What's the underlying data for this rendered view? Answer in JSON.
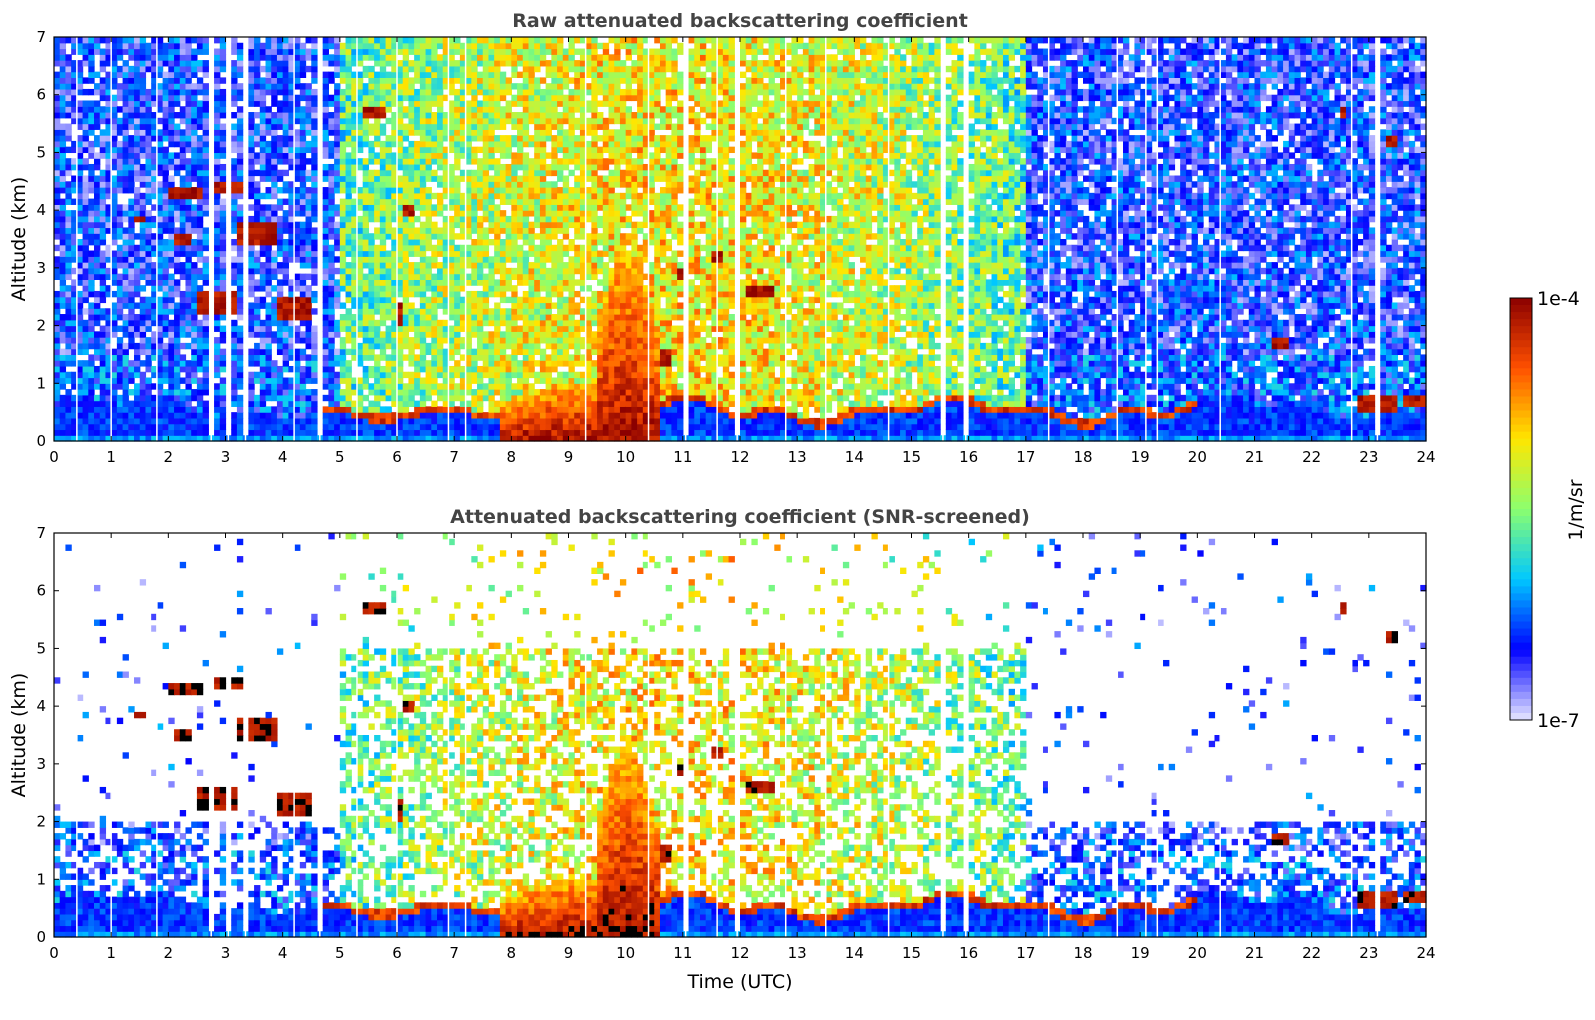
{
  "chart_data": [
    {
      "type": "heatmap",
      "title": "Raw attenuated backscattering coefficient",
      "xlabel": "",
      "ylabel": "Altitude (km)",
      "xlim": [
        0,
        24
      ],
      "ylim": [
        0,
        7
      ],
      "xticks": [
        "0",
        "1",
        "2",
        "3",
        "4",
        "5",
        "6",
        "7",
        "8",
        "9",
        "10",
        "11",
        "12",
        "13",
        "14",
        "15",
        "16",
        "17",
        "18",
        "19",
        "20",
        "21",
        "22",
        "23",
        "24"
      ],
      "yticks": [
        "0",
        "1",
        "2",
        "3",
        "4",
        "5",
        "6",
        "7"
      ],
      "screened": false
    },
    {
      "type": "heatmap",
      "title": "Attenuated backscattering coefficient (SNR-screened)",
      "xlabel": "Time (UTC)",
      "ylabel": "Altitude (km)",
      "xlim": [
        0,
        24
      ],
      "ylim": [
        0,
        7
      ],
      "xticks": [
        "0",
        "1",
        "2",
        "3",
        "4",
        "5",
        "6",
        "7",
        "8",
        "9",
        "10",
        "11",
        "12",
        "13",
        "14",
        "15",
        "16",
        "17",
        "18",
        "19",
        "20",
        "21",
        "22",
        "23",
        "24"
      ],
      "yticks": [
        "0",
        "1",
        "2",
        "3",
        "4",
        "5",
        "6",
        "7"
      ],
      "screened": true
    }
  ],
  "colorbar": {
    "max_label": "1e-4",
    "min_label": "1e-7",
    "unit_label": "1/m/sr",
    "scale": "log",
    "colors": [
      "#e6e6ff",
      "#0000ff",
      "#00c8ff",
      "#8cff6e",
      "#ffe600",
      "#ff5000",
      "#8b0000"
    ]
  },
  "features": {
    "boundary_layer_top_km": 0.6,
    "clouds": [
      {
        "t0": 2.0,
        "t1": 2.6,
        "z": 4.3,
        "h": 0.12
      },
      {
        "t0": 2.8,
        "t1": 3.3,
        "z": 4.4,
        "h": 0.12
      },
      {
        "t0": 3.2,
        "t1": 3.9,
        "z": 3.6,
        "h": 0.25
      },
      {
        "t0": 2.5,
        "t1": 3.2,
        "z": 2.4,
        "h": 0.3
      },
      {
        "t0": 3.9,
        "t1": 4.5,
        "z": 2.3,
        "h": 0.35
      },
      {
        "t0": 1.4,
        "t1": 1.6,
        "z": 3.85,
        "h": 0.1
      },
      {
        "t0": 2.1,
        "t1": 2.4,
        "z": 3.5,
        "h": 0.15
      },
      {
        "t0": 5.4,
        "t1": 5.8,
        "z": 5.7,
        "h": 0.05
      },
      {
        "t0": 6.1,
        "t1": 6.3,
        "z": 4.0,
        "h": 0.12
      },
      {
        "t0": 12.1,
        "t1": 12.6,
        "z": 2.6,
        "h": 0.12
      },
      {
        "t0": 10.5,
        "t1": 10.8,
        "z": 1.45,
        "h": 0.2
      },
      {
        "t0": 21.3,
        "t1": 21.6,
        "z": 1.7,
        "h": 0.12
      },
      {
        "t0": 23.3,
        "t1": 23.5,
        "z": 5.2,
        "h": 0.12
      },
      {
        "t0": 22.5,
        "t1": 22.6,
        "z": 5.75,
        "h": 0.1
      },
      {
        "t0": 22.8,
        "t1": 23.5,
        "z": 0.65,
        "h": 0.12
      },
      {
        "t0": 23.6,
        "t1": 24.0,
        "z": 0.72,
        "h": 0.1
      },
      {
        "t0": 11.5,
        "t1": 11.7,
        "z": 3.2,
        "h": 0.15
      },
      {
        "t0": 10.9,
        "t1": 11.0,
        "z": 2.9,
        "h": 0.15
      },
      {
        "t0": 6.0,
        "t1": 6.1,
        "z": 2.2,
        "h": 0.2
      }
    ],
    "convection": [
      {
        "t0": 7.8,
        "t1": 10.55,
        "top": 1.0
      },
      {
        "t0": 9.5,
        "t1": 10.55,
        "top": 3.3
      }
    ],
    "dropouts_hours": [
      0.4,
      1.0,
      1.8,
      2.75,
      3.05,
      3.35,
      4.2,
      4.65,
      5.3,
      6.0,
      6.9,
      7.2,
      9.3,
      10.4,
      11.05,
      11.6,
      11.95,
      12.8,
      13.5,
      14.6,
      15.55,
      15.95,
      17.4,
      18.6,
      19.1,
      19.3,
      20.4,
      22.7,
      23.15
    ]
  }
}
